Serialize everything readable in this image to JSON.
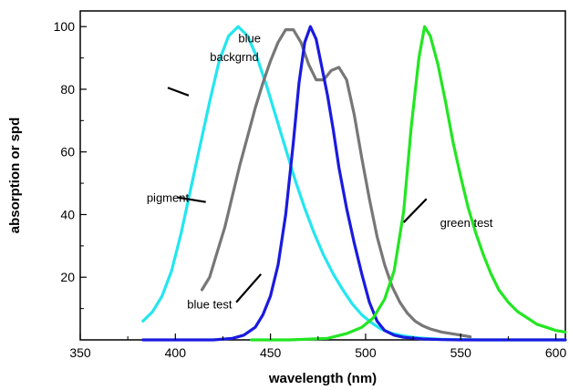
{
  "chart_data": {
    "type": "line",
    "xlabel": "wavelength (nm)",
    "ylabel": "absorption or spd",
    "xlim": [
      350,
      605
    ],
    "ylim": [
      0,
      105
    ],
    "xticks": [
      350,
      400,
      450,
      500,
      550,
      600
    ],
    "yticks": [
      20,
      40,
      60,
      80,
      100
    ],
    "grid": false,
    "legend": "none",
    "series": [
      {
        "color": "#22e6f0",
        "x": [
          383,
          388,
          393,
          398,
          403,
          408,
          413,
          418,
          423,
          428,
          433,
          438,
          443,
          448,
          453,
          458,
          463,
          468,
          473,
          478,
          483,
          488,
          493,
          498,
          503,
          508,
          513,
          518,
          523,
          528,
          533,
          540,
          550,
          560,
          570,
          580,
          590,
          600,
          605
        ],
        "values": [
          6,
          9,
          14,
          22,
          34,
          48,
          62,
          76,
          89,
          97,
          100,
          97,
          90,
          81,
          71,
          61,
          51,
          42,
          34,
          27,
          21,
          16,
          11.5,
          8,
          5.5,
          3.5,
          2.2,
          1.5,
          1,
          0.6,
          0.4,
          0.2,
          0.1,
          0,
          0,
          0,
          0,
          0,
          0
        ]
      },
      {
        "color": "#777777",
        "x": [
          414,
          418,
          422,
          426,
          430,
          434,
          438,
          442,
          446,
          450,
          454,
          458,
          462,
          466,
          470,
          474,
          478,
          482,
          486,
          490,
          494,
          498,
          502,
          506,
          510,
          514,
          518,
          522,
          526,
          530,
          534,
          540,
          550,
          555
        ],
        "values": [
          16,
          20,
          28,
          36,
          46,
          56,
          65,
          74,
          82,
          89,
          95,
          99,
          99,
          95,
          88,
          83,
          83,
          86,
          87,
          83,
          72,
          58,
          45,
          33,
          24,
          17,
          12,
          8.5,
          6,
          4.5,
          3.5,
          2.5,
          1.5,
          1
        ]
      },
      {
        "color": "#1a1ae0",
        "x": [
          383,
          400,
          420,
          430,
          436,
          442,
          446,
          450,
          454,
          458,
          462,
          465,
          468,
          471,
          474,
          477,
          480,
          483,
          486,
          490,
          494,
          498,
          502,
          506,
          510,
          515,
          520,
          530,
          540,
          550,
          560,
          570,
          580,
          590,
          600,
          605
        ],
        "values": [
          0,
          0,
          0,
          0.5,
          1.5,
          4,
          8,
          14,
          24,
          40,
          63,
          82,
          95,
          100,
          96,
          87,
          78,
          67,
          55,
          42,
          31,
          21,
          12,
          6,
          3,
          1.5,
          0.8,
          0.3,
          0.1,
          0,
          0,
          0,
          0,
          0,
          0,
          0
        ]
      },
      {
        "color": "#22e622",
        "x": [
          440,
          460,
          480,
          490,
          498,
          504,
          510,
          515,
          520,
          524,
          528,
          531,
          534,
          538,
          542,
          546,
          550,
          554,
          558,
          562,
          566,
          570,
          575,
          580,
          585,
          590,
          595,
          600,
          605
        ],
        "values": [
          0,
          0,
          0.5,
          2,
          4,
          7,
          13,
          22,
          41,
          68,
          90,
          100,
          97,
          88,
          76,
          63,
          52,
          42,
          34,
          27,
          21,
          16,
          12,
          9,
          7,
          5,
          4,
          3,
          2.5
        ]
      }
    ],
    "annotations": [
      {
        "text": "blue",
        "x": 439,
        "y": 95
      },
      {
        "text": "backgrnd",
        "x": 431,
        "y": 89
      },
      {
        "text": "pigment",
        "x": 396,
        "y": 44
      },
      {
        "text": "blue test",
        "x": 418,
        "y": 10
      },
      {
        "text": "green test",
        "x": 553,
        "y": 36
      }
    ],
    "pointers": [
      {
        "from_x": 396,
        "from_y": 80.5,
        "to_x": 407,
        "to_y": 78
      },
      {
        "from_x": 401,
        "from_y": 45.5,
        "to_x": 416,
        "to_y": 44
      },
      {
        "from_x": 432,
        "from_y": 12,
        "to_x": 445,
        "to_y": 21
      },
      {
        "from_x": 520,
        "from_y": 37.5,
        "to_x": 532,
        "to_y": 45
      }
    ]
  }
}
